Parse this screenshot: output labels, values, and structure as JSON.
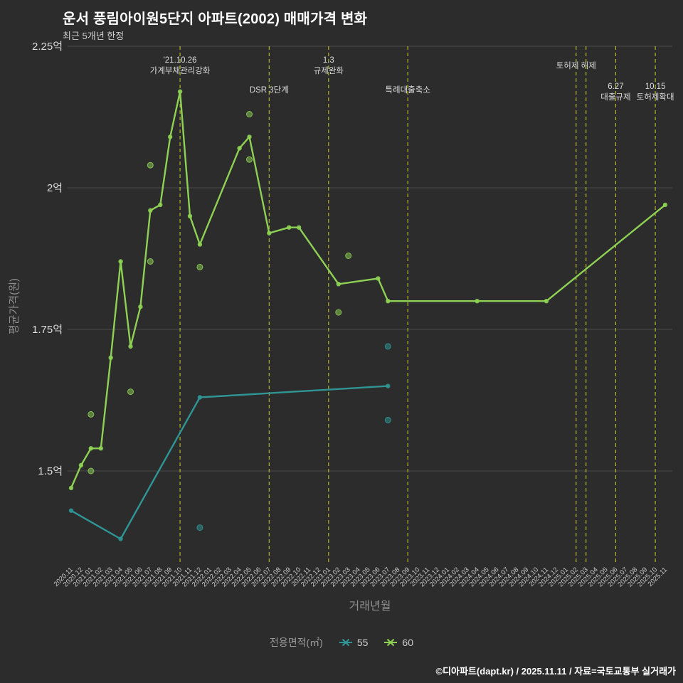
{
  "header": {
    "title": "운서 풍림아이원5단지 아파트(2002) 매매가격 변화",
    "subtitle": "최근 5개년 한정"
  },
  "legend": {
    "title": "전용면적(㎡)",
    "items": [
      {
        "label": "55",
        "color": "#2f9595"
      },
      {
        "label": "60",
        "color": "#8ed154"
      }
    ]
  },
  "footer": {
    "credit": "©디아파트(dapt.kr) / 2025.11.11 / 자료=국토교통부 실거래가"
  },
  "chart_data": {
    "type": "line",
    "title": "운서 풍림아이원5단지 아파트(2002) 매매가격 변화",
    "subtitle": "최근 5개년 한정",
    "xlabel": "거래년월",
    "ylabel": "평균가격(원)",
    "ylim": [
      1.33,
      2.25
    ],
    "grid": true,
    "legend_position": "bottom",
    "colors": {
      "background": "#2c2c2c",
      "grid": "#4a4a4a",
      "event_line": "#b3b32a",
      "tick_label": "#c9c9c9",
      "ytick_label": "#dcdcdc",
      "axis_title": "#8f8f8f",
      "event_label": "#dadada",
      "title": "#ffffff"
    },
    "yticks": [
      {
        "value": 2.25,
        "label": "2.25억"
      },
      {
        "value": 2.0,
        "label": "2억"
      },
      {
        "value": 1.75,
        "label": "1.75억"
      },
      {
        "value": 1.5,
        "label": "1.5억"
      }
    ],
    "categories": [
      "2020.11",
      "2020.12",
      "2021.01",
      "2021.02",
      "2021.03",
      "2021.04",
      "2021.05",
      "2021.06",
      "2021.07",
      "2021.08",
      "2021.09",
      "2021.10",
      "2021.11",
      "2021.12",
      "2022.01",
      "2022.02",
      "2022.03",
      "2022.04",
      "2022.05",
      "2022.06",
      "2022.07",
      "2022.08",
      "2022.09",
      "2022.10",
      "2022.11",
      "2022.12",
      "2023.01",
      "2023.02",
      "2023.03",
      "2023.04",
      "2023.05",
      "2023.06",
      "2023.07",
      "2023.08",
      "2023.09",
      "2023.10",
      "2023.11",
      "2023.12",
      "2024.01",
      "2024.02",
      "2024.03",
      "2024.04",
      "2024.05",
      "2024.06",
      "2024.07",
      "2024.08",
      "2024.09",
      "2024.10",
      "2024.11",
      "2024.12",
      "2025.01",
      "2025.02",
      "2025.03",
      "2025.04",
      "2025.05",
      "2025.06",
      "2025.07",
      "2025.08",
      "2025.09",
      "2025.10",
      "2025.11"
    ],
    "series": [
      {
        "name": "55",
        "color": "#2f9595",
        "points": [
          [
            "2020.11",
            1.43
          ],
          [
            "2021.04",
            1.38
          ],
          [
            "2021.12",
            1.63
          ],
          [
            "2023.07",
            1.65
          ]
        ],
        "scatter": [
          [
            "2021.12",
            1.4
          ],
          [
            "2023.07",
            1.72
          ],
          [
            "2023.07",
            1.59
          ]
        ]
      },
      {
        "name": "60",
        "color": "#8ed154",
        "points": [
          [
            "2020.11",
            1.47
          ],
          [
            "2020.12",
            1.51
          ],
          [
            "2021.01",
            1.54
          ],
          [
            "2021.02",
            1.54
          ],
          [
            "2021.03",
            1.7
          ],
          [
            "2021.04",
            1.87
          ],
          [
            "2021.05",
            1.72
          ],
          [
            "2021.06",
            1.79
          ],
          [
            "2021.07",
            1.96
          ],
          [
            "2021.08",
            1.97
          ],
          [
            "2021.09",
            2.09
          ],
          [
            "2021.10",
            2.17
          ],
          [
            "2021.11",
            1.95
          ],
          [
            "2021.12",
            1.9
          ],
          [
            "2022.04",
            2.07
          ],
          [
            "2022.05",
            2.09
          ],
          [
            "2022.07",
            1.92
          ],
          [
            "2022.09",
            1.93
          ],
          [
            "2022.10",
            1.93
          ],
          [
            "2023.02",
            1.83
          ],
          [
            "2023.06",
            1.84
          ],
          [
            "2023.07",
            1.8
          ],
          [
            "2024.04",
            1.8
          ],
          [
            "2024.11",
            1.8
          ],
          [
            "2025.11",
            1.97
          ]
        ],
        "scatter": [
          [
            "2021.01",
            1.6
          ],
          [
            "2021.01",
            1.5
          ],
          [
            "2021.05",
            1.64
          ],
          [
            "2021.07",
            2.04
          ],
          [
            "2021.07",
            1.87
          ],
          [
            "2021.12",
            1.86
          ],
          [
            "2022.05",
            2.13
          ],
          [
            "2022.05",
            2.05
          ],
          [
            "2023.02",
            1.78
          ],
          [
            "2023.03",
            1.88
          ]
        ]
      }
    ],
    "events": [
      {
        "month": "2021.10",
        "labels": [
          "'21.10.26",
          "가계부채관리강화"
        ],
        "row": 0
      },
      {
        "month": "2022.07",
        "labels": [
          "DSR 3단계"
        ],
        "row": 1
      },
      {
        "month": "2023.01",
        "labels": [
          "1.3",
          "규제완화"
        ],
        "row": 0
      },
      {
        "month": "2023.09",
        "labels": [
          "특례대출축소"
        ],
        "row": 1
      },
      {
        "month": "2025.02",
        "labels": [
          "토허제 해제"
        ],
        "row": 0
      },
      {
        "month": "2025.03",
        "labels": [],
        "row": 0
      },
      {
        "month": "2025.06",
        "labels": [
          "6.27",
          "대출규제"
        ],
        "row": 1
      },
      {
        "month": "2025.10",
        "labels": [
          "10.15",
          "토허제확대"
        ],
        "row": 1
      }
    ]
  }
}
